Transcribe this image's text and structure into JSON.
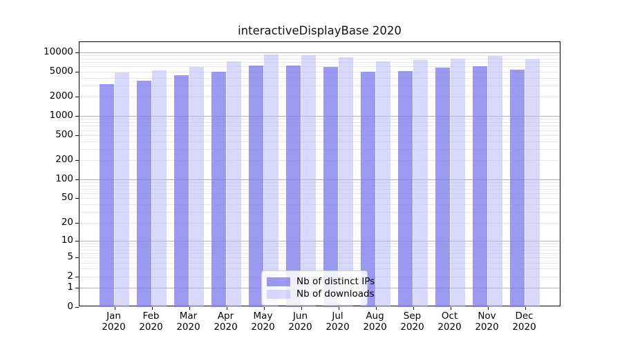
{
  "chart_data": {
    "type": "bar",
    "title": "interactiveDisplayBase 2020",
    "scale": "log1p",
    "grid": true,
    "legend_position": "lower center",
    "year": "2020",
    "months": [
      "Jan",
      "Feb",
      "Mar",
      "Apr",
      "May",
      "Jun",
      "Jul",
      "Aug",
      "Sep",
      "Oct",
      "Nov",
      "Dec"
    ],
    "categories": [
      "Jan 2020",
      "Feb 2020",
      "Mar 2020",
      "Apr 2020",
      "May 2020",
      "Jun 2020",
      "Jul 2020",
      "Aug 2020",
      "Sep 2020",
      "Oct 2020",
      "Nov 2020",
      "Dec 2020"
    ],
    "series": [
      {
        "name": "Nb of distinct IPs",
        "color": "#9a9aeb",
        "rgba": "rgba(129,129,236,0.80)",
        "values": [
          3180,
          3600,
          4330,
          5000,
          6150,
          6180,
          5890,
          4990,
          5110,
          5700,
          6040,
          5330
        ]
      },
      {
        "name": "Nb of downloads",
        "color": "#d8d8fa",
        "rgba": "rgba(184,184,246,0.55)",
        "values": [
          4790,
          5240,
          5890,
          7140,
          9160,
          8930,
          8420,
          7140,
          7620,
          8020,
          8790,
          7760
        ]
      }
    ],
    "y_ticks": [
      0,
      1,
      2,
      5,
      10,
      20,
      50,
      100,
      200,
      500,
      1000,
      2000,
      5000,
      10000
    ],
    "ylim": [
      0,
      14500
    ],
    "xlabel": "",
    "ylabel": "",
    "axis_color": "#000000",
    "grid_major_color": "#b0b0b0",
    "grid_minor_color": "#e6e6e6"
  }
}
